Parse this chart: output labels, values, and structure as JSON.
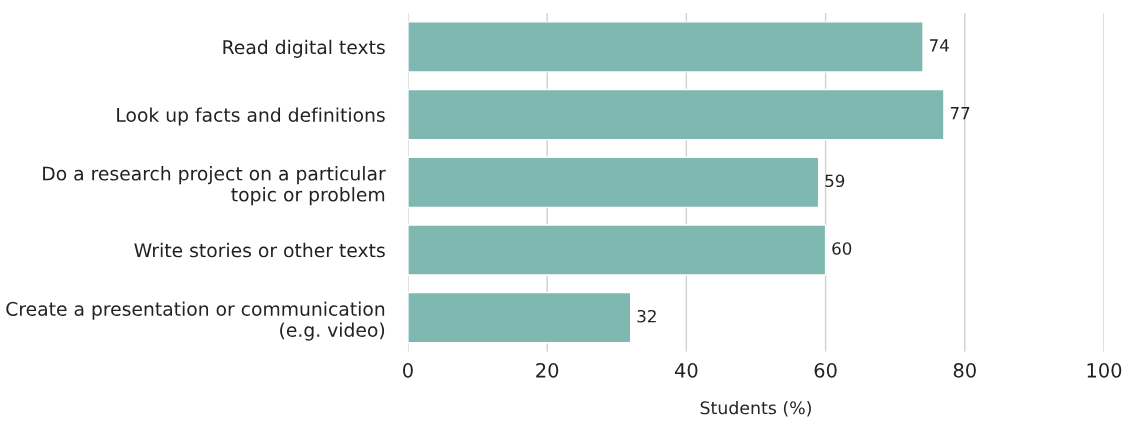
{
  "chart_data": {
    "type": "bar",
    "orientation": "horizontal",
    "categories": [
      "Read digital texts",
      "Look up facts and definitions",
      "Do a research project on a particular\ntopic or problem",
      "Write stories or other texts",
      "Create a presentation or communication\n(e.g. video)"
    ],
    "values": [
      74,
      77,
      59,
      60,
      32
    ],
    "color": "#7fb8b0",
    "xlabel": "Students (%)",
    "xlim": [
      0,
      100
    ],
    "xticks": [
      0,
      20,
      40,
      60,
      80,
      100
    ],
    "grid": "x",
    "data_labels": true,
    "legend": false
  }
}
